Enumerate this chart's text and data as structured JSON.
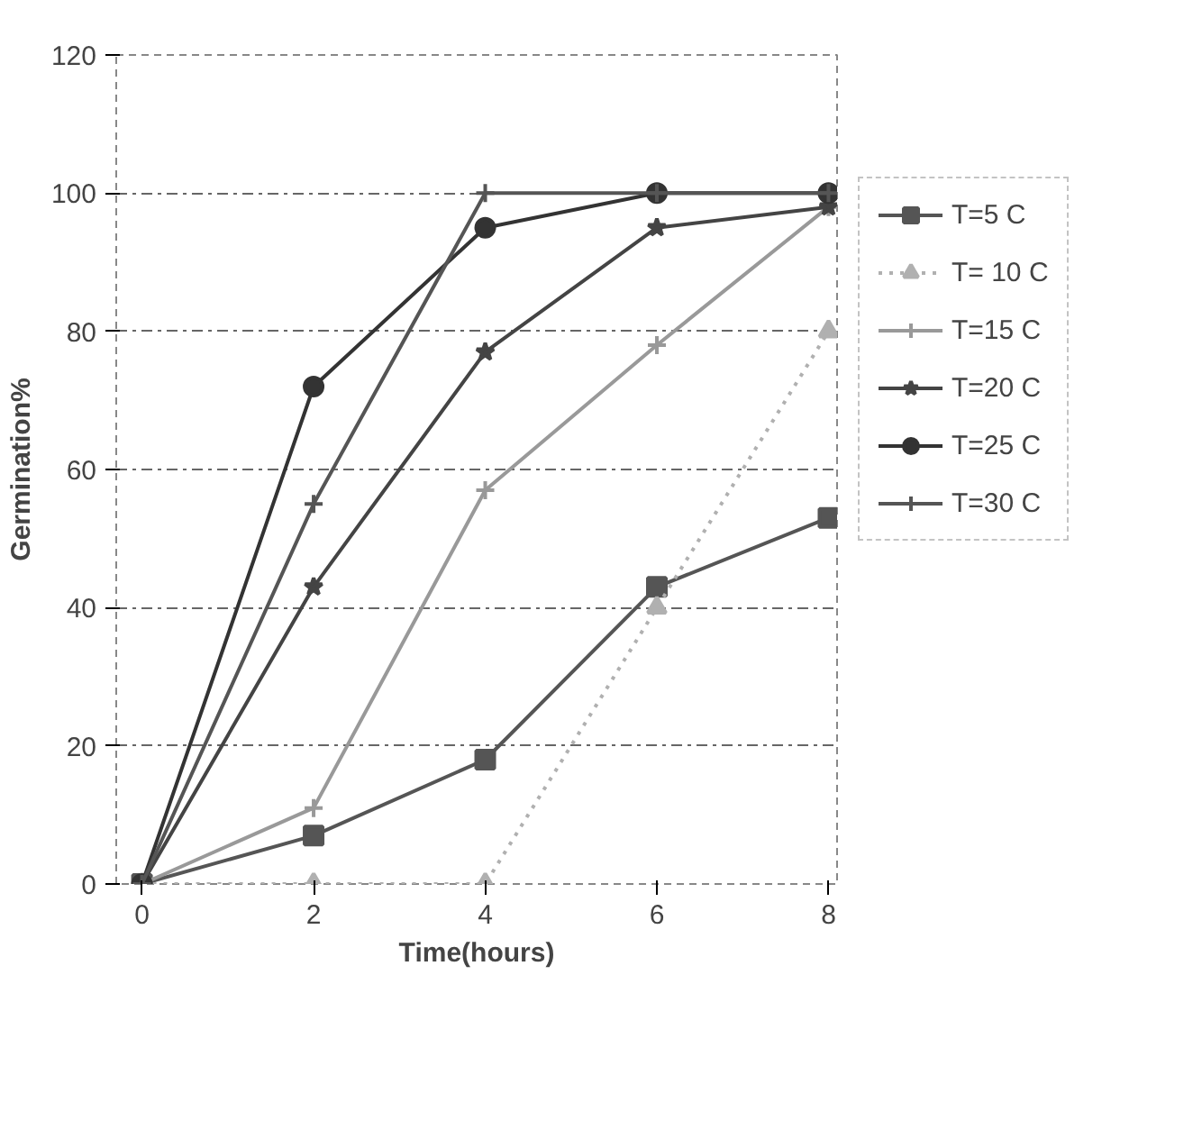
{
  "chart_data": {
    "type": "line",
    "xlabel": "Time(hours)",
    "ylabel": "Germination%",
    "x": [
      0,
      2,
      4,
      6,
      8
    ],
    "xlim": [
      -0.3,
      8.1
    ],
    "xticks": [
      0,
      2,
      4,
      6,
      8
    ],
    "ylim": [
      0,
      120
    ],
    "yticks": [
      0,
      20,
      40,
      60,
      80,
      100,
      120
    ],
    "grid": "y",
    "legend": "right",
    "line_style": "solid",
    "series": [
      {
        "name": "T=5 C",
        "color": "#555555",
        "marker": "square",
        "values": [
          0,
          7,
          18,
          43,
          53
        ]
      },
      {
        "name": "T= 10 C",
        "color": "#b0b0b0",
        "marker": "triangle",
        "line_style": "dotted",
        "values": [
          0,
          0,
          0,
          40,
          80
        ]
      },
      {
        "name": "T=15 C",
        "color": "#999999",
        "marker": "cross",
        "values": [
          0,
          11,
          57,
          78,
          98
        ]
      },
      {
        "name": "T=20 C",
        "color": "#444444",
        "marker": "star",
        "values": [
          0,
          43,
          77,
          95,
          98
        ]
      },
      {
        "name": "T=25 C",
        "color": "#333333",
        "marker": "circle",
        "values": [
          0,
          72,
          95,
          100,
          100
        ]
      },
      {
        "name": "T=30 C",
        "color": "#555555",
        "marker": "cross",
        "values": [
          0,
          55,
          100,
          100,
          100
        ]
      }
    ]
  }
}
